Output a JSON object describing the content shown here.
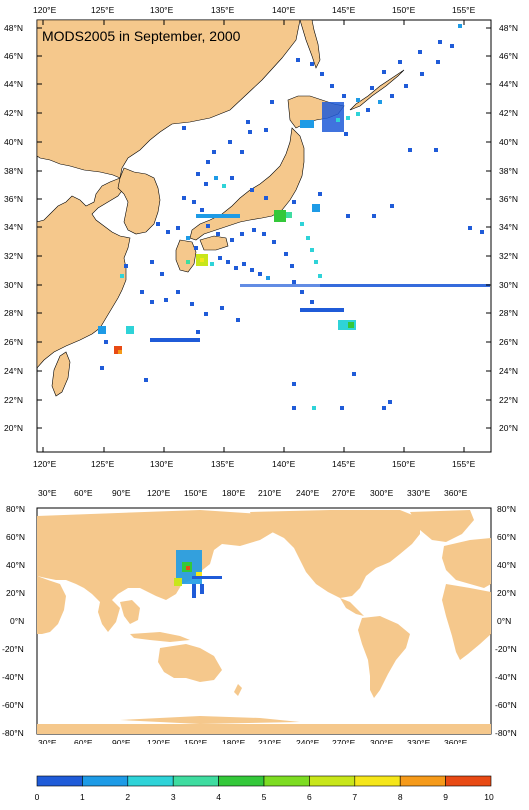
{
  "top_map": {
    "title": "MODS2005 in September, 2000",
    "lon_labels": [
      "120°E",
      "125°E",
      "130°E",
      "135°E",
      "140°E",
      "145°E",
      "150°E",
      "155°E"
    ],
    "lat_labels": [
      "48°N",
      "46°N",
      "44°N",
      "42°N",
      "40°N",
      "38°N",
      "36°N",
      "34°N",
      "32°N",
      "30°N",
      "28°N",
      "26°N",
      "24°N",
      "22°N",
      "20°N"
    ],
    "colors": {
      "ocean": "#ffffff",
      "land": "#f5c88c",
      "border": "#000000"
    }
  },
  "bottom_map": {
    "lon_labels": [
      "30°E",
      "60°E",
      "90°E",
      "120°E",
      "150°E",
      "180°E",
      "210°E",
      "240°E",
      "270°E",
      "300°E",
      "330°E",
      "360°E"
    ],
    "lat_labels": [
      "80°N",
      "60°N",
      "40°N",
      "20°N",
      "0°N",
      "-20°N",
      "-40°N",
      "-60°N",
      "-80°N"
    ]
  },
  "colorbar": {
    "ticks": [
      "0",
      "1",
      "2",
      "3",
      "4",
      "5",
      "6",
      "7",
      "8",
      "9",
      "10"
    ],
    "colors": [
      "#1f5bd8",
      "#1e9be6",
      "#2fd3d8",
      "#3fdca0",
      "#34c83a",
      "#7ddc22",
      "#c8e61a",
      "#f5e61a",
      "#f59a1a",
      "#e84a14"
    ]
  }
}
